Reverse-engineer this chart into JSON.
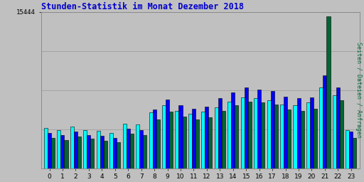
{
  "title": "Stunden-Statistik im Monat Dezember 2018",
  "title_color": "#0000cc",
  "ylabel_right": "Seiten / Dateien / Anfragen",
  "ymax": 15444,
  "ytick_label": "15444",
  "background_color": "#c0c0c0",
  "plot_bg_color": "#c0c0c0",
  "hours": [
    0,
    1,
    2,
    3,
    4,
    5,
    6,
    7,
    8,
    9,
    10,
    11,
    12,
    13,
    14,
    15,
    16,
    17,
    18,
    19,
    20,
    21,
    22,
    23
  ],
  "seiten": [
    4000,
    3800,
    4100,
    3800,
    3700,
    3500,
    4400,
    4300,
    5500,
    6200,
    5700,
    5400,
    5600,
    6000,
    6600,
    7000,
    6900,
    6700,
    6300,
    6200,
    6500,
    8000,
    7200,
    3800
  ],
  "dateien": [
    3500,
    3300,
    3600,
    3300,
    3200,
    3000,
    3900,
    3800,
    5800,
    6800,
    6200,
    5900,
    6100,
    6900,
    7500,
    8000,
    7800,
    7600,
    7100,
    6900,
    7000,
    9200,
    8000,
    3600
  ],
  "anfragen": [
    3000,
    2800,
    3100,
    2900,
    2700,
    2600,
    3400,
    3300,
    4800,
    5600,
    5100,
    4800,
    5000,
    5700,
    6200,
    6600,
    6500,
    6300,
    5800,
    5700,
    5900,
    15000,
    6700,
    3000
  ],
  "color_seiten": "#00ffff",
  "color_dateien": "#0000ff",
  "color_anfragen": "#006633",
  "grid_color": "#999999",
  "border_color": "#000000",
  "bar_gap": 0.02,
  "figsize": [
    5.12,
    2.56
  ],
  "dpi": 100
}
